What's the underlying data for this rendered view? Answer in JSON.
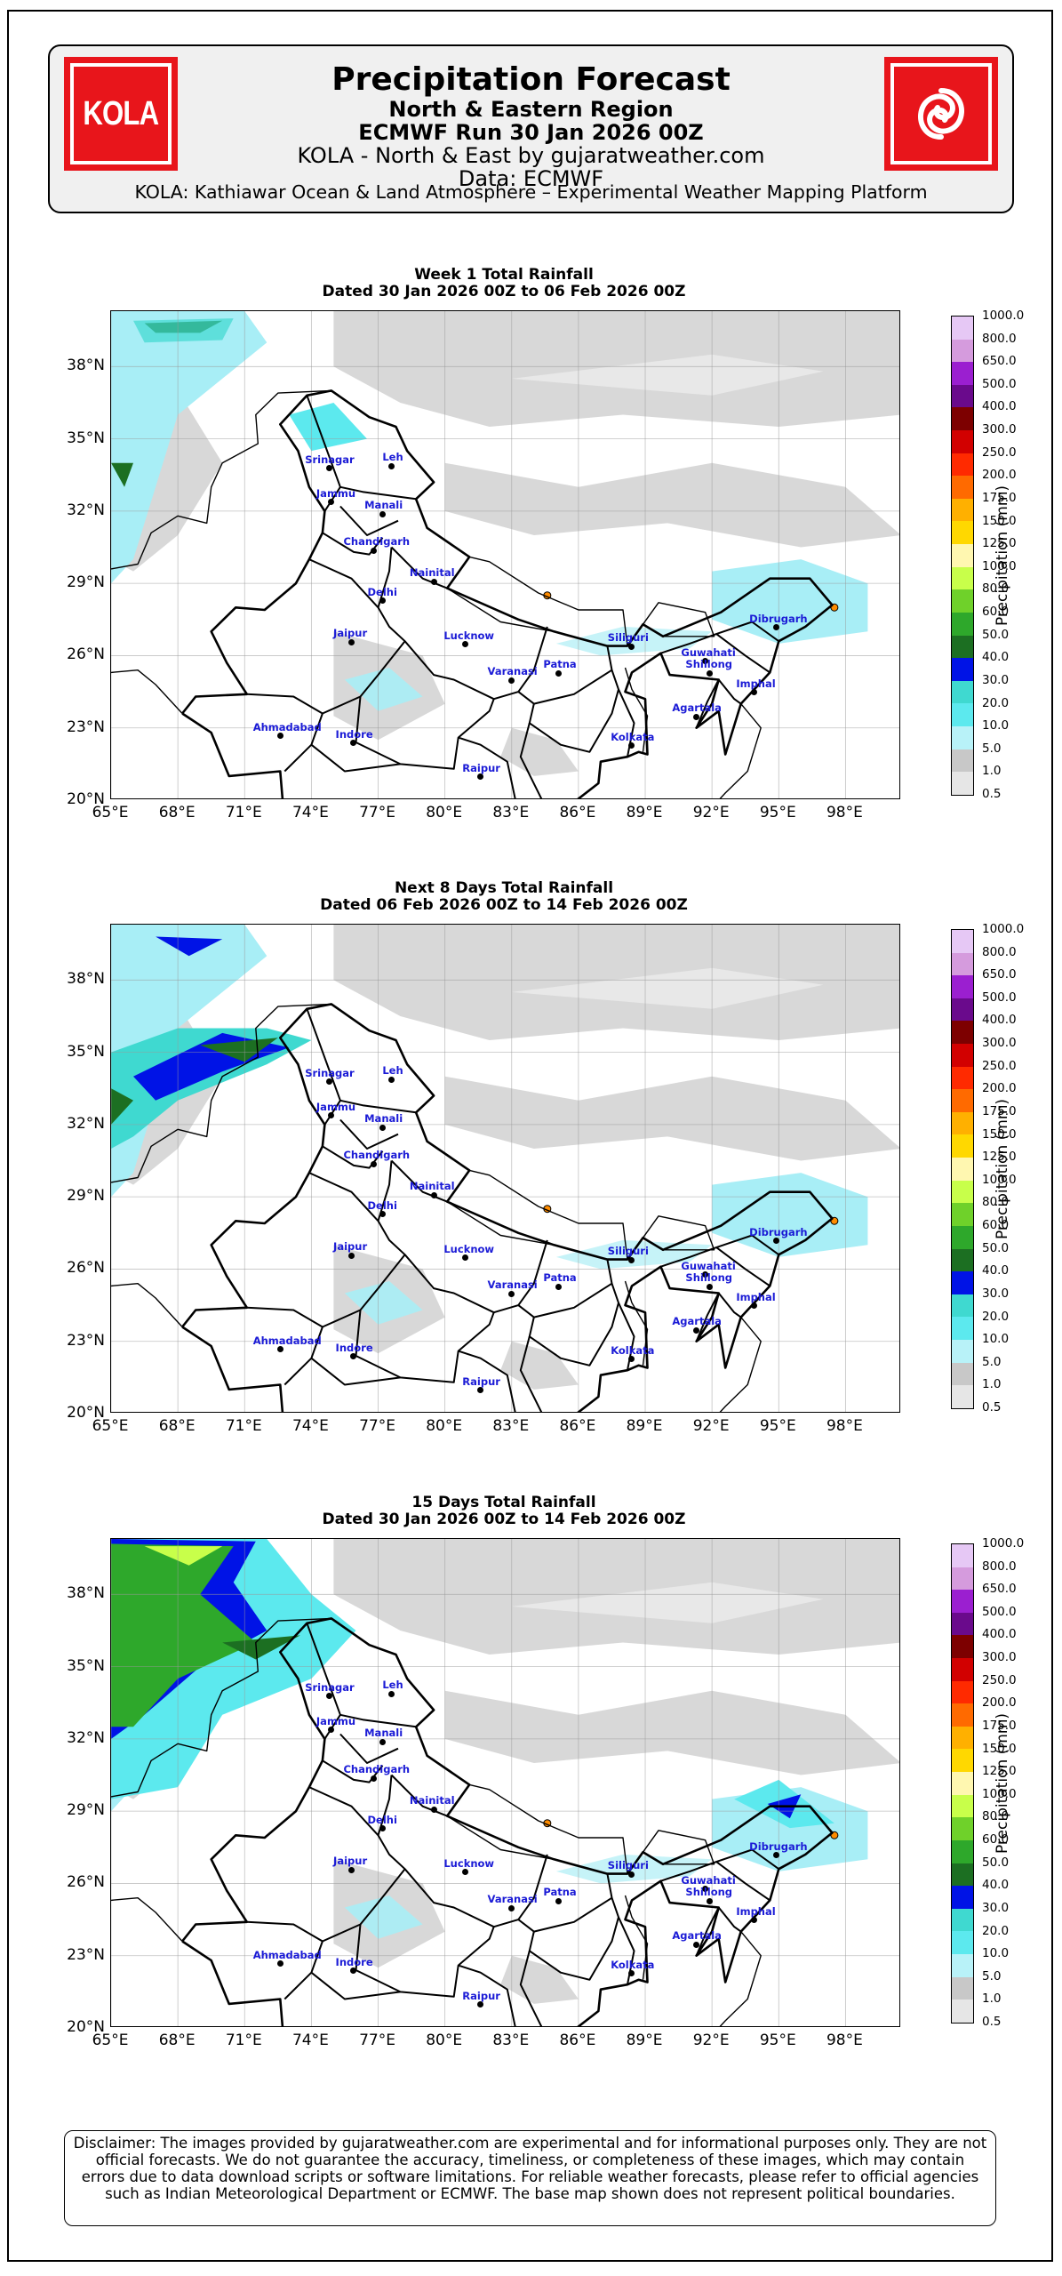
{
  "header": {
    "logo_left_text": "KOLA",
    "logo_right_icon": "swirl-icon",
    "title": "Precipitation Forecast",
    "region": "North & Eastern Region",
    "run": "ECMWF Run 30 Jan 2026 00Z",
    "source": "KOLA - North & East by gujaratweather.com",
    "data": "Data: ECMWF",
    "platform": "KOLA: Kathiawar Ocean & Land Atmosphere – Experimental Weather Mapping Platform",
    "brand_color": "#e8151b"
  },
  "panels": [
    {
      "title": "Week 1 Total Rainfall",
      "dated": "Dated 30 Jan 2026 00Z to 06 Feb 2026 00Z"
    },
    {
      "title": "Next 8 Days Total Rainfall",
      "dated": "Dated 06 Feb 2026 00Z to 14 Feb 2026 00Z"
    },
    {
      "title": "15 Days Total Rainfall",
      "dated": "Dated 30 Jan 2026 00Z to 14 Feb 2026 00Z"
    }
  ],
  "axes": {
    "lat_labels": [
      "38°N",
      "35°N",
      "32°N",
      "29°N",
      "26°N",
      "23°N",
      "20°N"
    ],
    "lon_labels": [
      "65°E",
      "68°E",
      "71°E",
      "74°E",
      "77°E",
      "80°E",
      "83°E",
      "86°E",
      "89°E",
      "92°E",
      "95°E",
      "98°E"
    ],
    "colorbar_label": "Precipitation (mm)",
    "colorbar_levels": [
      "1000.0",
      "800.0",
      "650.0",
      "500.0",
      "400.0",
      "300.0",
      "250.0",
      "200.0",
      "175.0",
      "150.0",
      "125.0",
      "100.0",
      "80.0",
      "60.0",
      "50.0",
      "40.0",
      "30.0",
      "20.0",
      "10.0",
      "5.0",
      "1.0",
      "0.5"
    ],
    "colorbar_colors": [
      "#e6c8f5",
      "#d59bdd",
      "#9b1fd0",
      "#6a0a8c",
      "#7d0000",
      "#d20000",
      "#ff2a00",
      "#ff6a00",
      "#ffb000",
      "#ffd800",
      "#fff7b0",
      "#c8ff4a",
      "#6fd12a",
      "#2ea82b",
      "#1c6f22",
      "#0013e6",
      "#3fd9d0",
      "#5ce9ee",
      "#b8f2f8",
      "#c8c8c8",
      "#e6e6e6"
    ]
  },
  "cities": [
    {
      "name": "Srinagar",
      "lon": 74.8,
      "lat": 34.1
    },
    {
      "name": "Leh",
      "lon": 77.6,
      "lat": 34.2
    },
    {
      "name": "Jammu",
      "lon": 74.9,
      "lat": 32.7
    },
    {
      "name": "Manali",
      "lon": 77.2,
      "lat": 32.2
    },
    {
      "name": "Chandigarh",
      "lon": 76.8,
      "lat": 30.7
    },
    {
      "name": "Nainital",
      "lon": 79.5,
      "lat": 29.4
    },
    {
      "name": "Delhi",
      "lon": 77.2,
      "lat": 28.6
    },
    {
      "name": "Jaipur",
      "lon": 75.8,
      "lat": 26.9
    },
    {
      "name": "Lucknow",
      "lon": 80.9,
      "lat": 26.8
    },
    {
      "name": "Siliguri",
      "lon": 88.4,
      "lat": 26.7
    },
    {
      "name": "Dibrugarh",
      "lon": 94.9,
      "lat": 27.5
    },
    {
      "name": "Guwahati",
      "lon": 91.7,
      "lat": 26.1
    },
    {
      "name": "Shillong",
      "lon": 91.9,
      "lat": 25.6
    },
    {
      "name": "Varanasi",
      "lon": 83.0,
      "lat": 25.3
    },
    {
      "name": "Patna",
      "lon": 85.1,
      "lat": 25.6
    },
    {
      "name": "Imphal",
      "lon": 93.9,
      "lat": 24.8
    },
    {
      "name": "Agartala",
      "lon": 91.3,
      "lat": 23.8
    },
    {
      "name": "Ahmadabad",
      "lon": 72.6,
      "lat": 23.0
    },
    {
      "name": "Indore",
      "lon": 75.9,
      "lat": 22.7
    },
    {
      "name": "Kolkata",
      "lon": 88.4,
      "lat": 22.6
    },
    {
      "name": "Raipur",
      "lon": 81.6,
      "lat": 21.3
    }
  ],
  "disclaimer": "Disclaimer: The images provided by gujaratweather.com are experimental and for informational purposes only. They are not official forecasts. We do not guarantee the accuracy, timeliness, or completeness of these images, which may contain errors due to data download scripts or software limitations. For reliable weather forecasts, please refer to official agencies such as Indian Meteorological Department or ECMWF.                    The base map shown does not represent political boundaries."
}
